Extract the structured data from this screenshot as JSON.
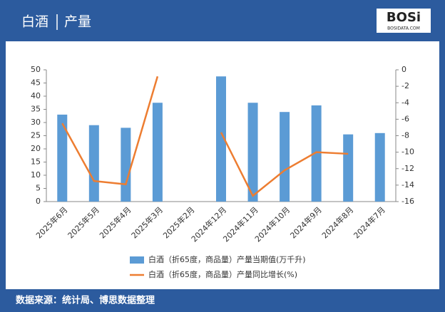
{
  "chart_data": {
    "type": "bar-line",
    "title": "白酒",
    "subtitle": "产量",
    "logo": "BOSi",
    "logo_sub": "BOSIDATA.COM",
    "source": "数据来源：统计局、博思数据整理",
    "categories": [
      "2025年6月",
      "2025年5月",
      "2025年4月",
      "2025年3月",
      "2025年2月",
      "2024年12月",
      "2024年11月",
      "2024年10月",
      "2024年9月",
      "2024年8月",
      "2024年7月"
    ],
    "series": [
      {
        "name": "白酒（折65度，商品量）产量当期值(万千升)",
        "type": "bar",
        "color": "#5b9bd5",
        "values": [
          33,
          29,
          28,
          37.5,
          null,
          47.5,
          37.5,
          34,
          36.5,
          25.5,
          26
        ]
      },
      {
        "name": "白酒（折65度，商品量）产量同比增长(%)",
        "type": "line",
        "axis": "y2",
        "color": "#ed7d31",
        "values": [
          -6.5,
          -13.5,
          -13.9,
          -0.8,
          null,
          -7.6,
          -15.3,
          -12.2,
          -10,
          -10.2,
          null
        ]
      }
    ],
    "ylim": [
      0,
      50
    ],
    "yticks": [
      0,
      5,
      10,
      15,
      20,
      25,
      30,
      35,
      40,
      45,
      50
    ],
    "y2lim": [
      -16,
      0
    ],
    "y2ticks": [
      -16,
      -14,
      -12,
      -10,
      -8,
      -6,
      -4,
      -2,
      0
    ]
  }
}
